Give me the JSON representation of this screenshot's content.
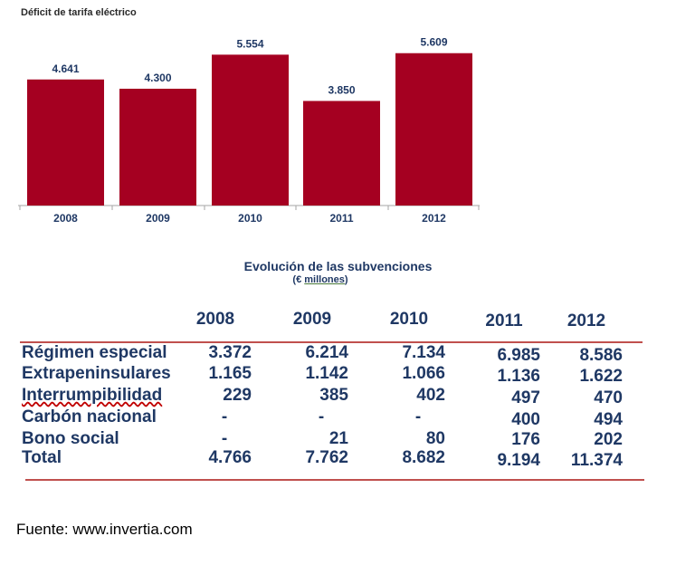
{
  "chart_data": {
    "type": "bar",
    "title": "Déficit de tarifa eléctrico",
    "categories": [
      "2008",
      "2009",
      "2010",
      "2011",
      "2012"
    ],
    "values": [
      4641,
      4300,
      5554,
      3850,
      5609
    ],
    "value_labels": [
      "4.641",
      "4.300",
      "5.554",
      "3.850",
      "5.609"
    ],
    "ylim": [
      0,
      6500
    ],
    "bar_color": "#a50021",
    "xlabel": "",
    "ylabel": ""
  },
  "table": {
    "title": "Evolución de las subvenciones",
    "subtitle_prefix": "(€ ",
    "subtitle_unit": "millones",
    "subtitle_suffix": ")",
    "years": [
      "2008",
      "2009",
      "2010",
      "2011",
      "2012"
    ],
    "rows": [
      {
        "label": "Régimen especial",
        "values": [
          "3.372",
          "6.214",
          "7.134",
          "6.985",
          "8.586"
        ]
      },
      {
        "label": "Extrapeninsulares",
        "values": [
          "1.165",
          "1.142",
          "1.066",
          "1.136",
          "1.622"
        ]
      },
      {
        "label": "Interrumpibilidad",
        "values": [
          "229",
          "385",
          "402",
          "497",
          "470"
        ]
      },
      {
        "label": "Carbón nacional",
        "values": [
          "-",
          "-",
          "-",
          "400",
          "494"
        ]
      },
      {
        "label": "Bono social",
        "values": [
          "-",
          "21",
          "80",
          "176",
          "202"
        ]
      },
      {
        "label": "Total",
        "values": [
          "4.766",
          "7.762",
          "8.682",
          "9.194",
          "11.374"
        ]
      }
    ],
    "rule_color": "#c0504d"
  },
  "source": "Fuente: www.invertia.com"
}
